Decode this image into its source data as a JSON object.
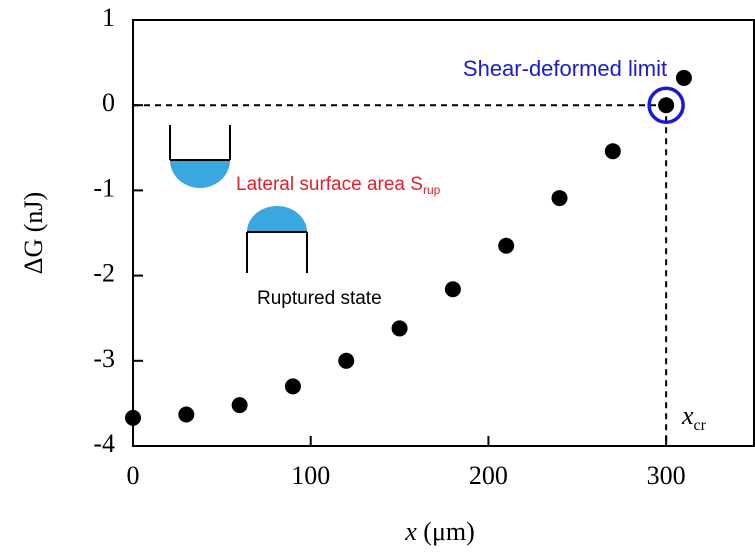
{
  "chart_data": {
    "type": "scatter",
    "ylabel": "ΔG (nJ)",
    "xlabel_var": "x",
    "xlabel_unit": "(μm)",
    "x": [
      0,
      30,
      60,
      90,
      120,
      150,
      180,
      210,
      240,
      270,
      300,
      310
    ],
    "values": [
      -3.67,
      -3.63,
      -3.52,
      -3.3,
      -3.0,
      -2.62,
      -2.16,
      -1.65,
      -1.09,
      -0.54,
      0,
      0.32
    ],
    "color": "#000000",
    "xlim": [
      0,
      350
    ],
    "xticks": [
      0,
      100,
      200,
      300
    ],
    "ylim": [
      -4,
      1
    ],
    "yticks": [
      -4,
      -3,
      -2,
      -1,
      0,
      1
    ],
    "annotations": {
      "limit": "Shear-deformed limit",
      "limit_color": "#1a1ad6",
      "area": "Lateral surface area S",
      "area_sub": "rup",
      "area_color": "#e0202a",
      "ruptured": "Ruptured state",
      "xcr": "x",
      "xcr_sub": "cr"
    }
  }
}
